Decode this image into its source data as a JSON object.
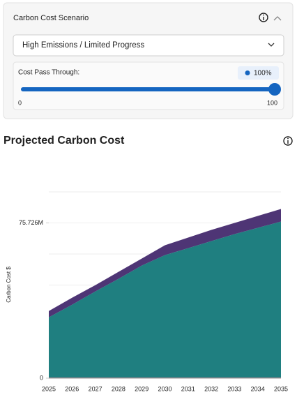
{
  "panel": {
    "title": "Carbon Cost Scenario",
    "dropdown": {
      "selected": "High Emissions / Limited Progress"
    },
    "slider": {
      "label": "Cost Pass Through:",
      "value": 100,
      "value_label": "100%",
      "min": 0,
      "max": 100
    }
  },
  "chart_data": {
    "type": "area",
    "title": "Projected Carbon Cost",
    "y_label": "Carbon Cost $",
    "categories": [
      "2025",
      "2026",
      "2027",
      "2028",
      "2029",
      "2030",
      "2031",
      "2032",
      "2033",
      "2034",
      "2035"
    ],
    "stacked": true,
    "series": [
      {
        "color": "#c2466a",
        "values": [
          300000,
          300000,
          300000,
          300000,
          300000,
          300000,
          300000,
          300000,
          300000,
          300000,
          300000
        ]
      },
      {
        "color": "#1f7f80",
        "values": [
          29380000,
          35520000,
          42000000,
          48140000,
          54620000,
          59740000,
          63150000,
          66560000,
          69970000,
          73040000,
          76110000
        ]
      },
      {
        "color": "#4e3575",
        "values": [
          3070000,
          3410000,
          3070000,
          3410000,
          3410000,
          4780000,
          5120000,
          5460000,
          5460000,
          5800000,
          6140000
        ]
      }
    ],
    "ylim": [
      0,
      90871200
    ],
    "yticks": [
      {
        "value": 0,
        "label": "0"
      },
      {
        "value": 75726000,
        "label": "75.726M"
      }
    ],
    "grid_values": [
      15145200,
      30290400,
      45435600,
      60580800,
      75726000,
      90871200
    ],
    "grid": true
  }
}
